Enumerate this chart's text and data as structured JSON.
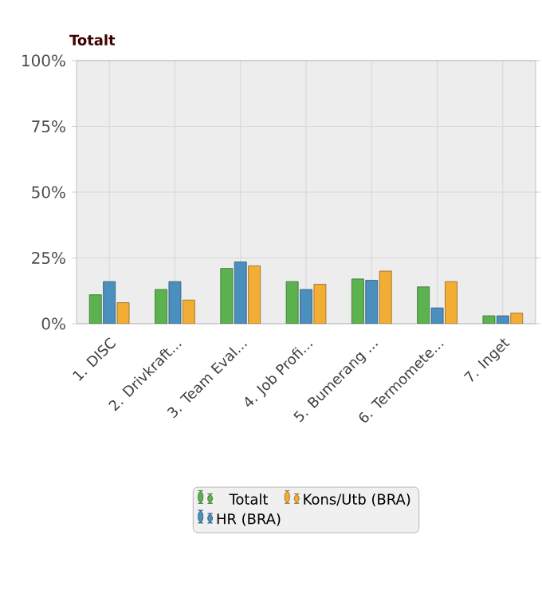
{
  "chart_data": {
    "type": "bar",
    "title": "Totalt",
    "categories": [
      "1. DISC",
      "2. Drivkraft...",
      "3. Team Eval...",
      "4. Job Profi...",
      "5. Bumerang ...",
      "6. Termomete...",
      "7. Inget"
    ],
    "series": [
      {
        "name": "Totalt",
        "color": "#5cb24f",
        "values": [
          11,
          13,
          21,
          16,
          17,
          14,
          3
        ]
      },
      {
        "name": "HR (BRA)",
        "color": "#4a8fbd",
        "values": [
          16,
          16,
          23.5,
          13,
          16.5,
          6,
          3
        ]
      },
      {
        "name": "Kons/Utb (BRA)",
        "color": "#f2ad35",
        "values": [
          8,
          9,
          22,
          15,
          20,
          16,
          4
        ]
      }
    ],
    "ylim": [
      0,
      100
    ],
    "yticks": [
      {
        "value": 0,
        "label": "0%"
      },
      {
        "value": 25,
        "label": "25%"
      },
      {
        "value": 50,
        "label": "50%"
      },
      {
        "value": 75,
        "label": "75%"
      },
      {
        "value": 100,
        "label": "100%"
      }
    ],
    "grid": true,
    "legend": "bottom"
  }
}
